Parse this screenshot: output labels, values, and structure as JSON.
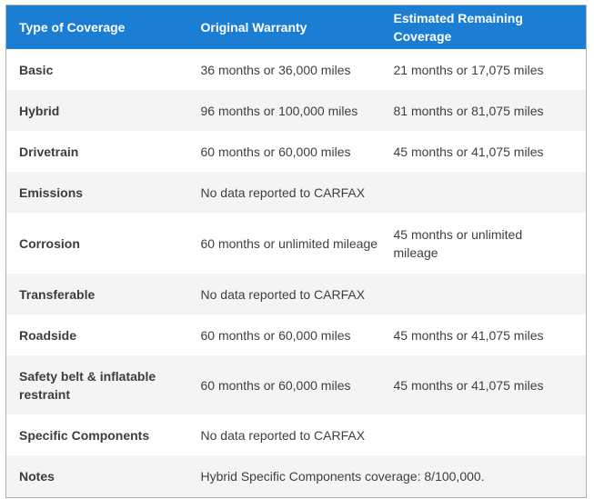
{
  "colors": {
    "header_bg": "#1b7ed3",
    "header_text": "#ffffff",
    "row_stripe": "#f4f4f5",
    "border": "#aeb0b2",
    "body_text": "#3d4043"
  },
  "table": {
    "columns": [
      {
        "label": "Type of Coverage"
      },
      {
        "label": "Original Warranty"
      },
      {
        "label": "Estimated Remaining Coverage"
      }
    ],
    "rows": [
      {
        "type": "Basic",
        "original": "36 months or 36,000 miles",
        "remaining": "21 months or 17,075 miles"
      },
      {
        "type": "Hybrid",
        "original": "96 months or 100,000 miles",
        "remaining": "81 months or 81,075 miles"
      },
      {
        "type": "Drivetrain",
        "original": "60 months or 60,000 miles",
        "remaining": "45 months or 41,075 miles"
      },
      {
        "type": "Emissions",
        "original": "No data reported to CARFAX",
        "remaining": ""
      },
      {
        "type": "Corrosion",
        "original": "60 months or unlimited mileage",
        "remaining": "45 months or unlimited mileage"
      },
      {
        "type": "Transferable",
        "original": "No data reported to CARFAX",
        "remaining": ""
      },
      {
        "type": "Roadside",
        "original": "60 months or 60,000 miles",
        "remaining": "45 months or 41,075 miles"
      },
      {
        "type": "Safety belt & inflatable restraint",
        "original": "60 months or 60,000 miles",
        "remaining": "45 months or 41,075 miles"
      },
      {
        "type": "Specific Components",
        "original": "No data reported to CARFAX",
        "remaining": ""
      }
    ],
    "notes": {
      "type": "Notes",
      "value": "Hybrid Specific Components coverage: 8/100,000."
    }
  }
}
